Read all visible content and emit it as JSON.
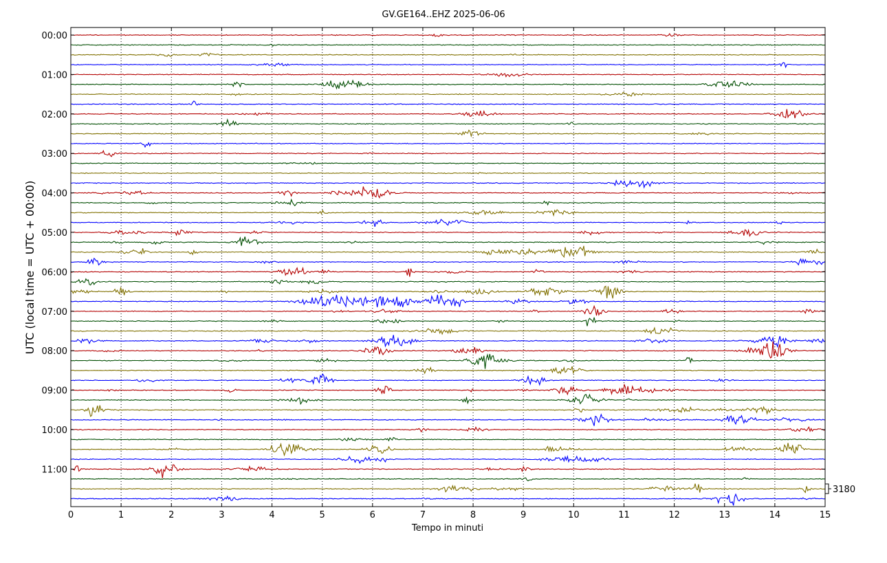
{
  "chart_data": {
    "type": "line",
    "title": "GV.GE164..EHZ 2025-06-06",
    "xlabel": "Tempo in minuti",
    "ylabel": "UTC (local time = UTC + 00:00)",
    "xlim": [
      0,
      15
    ],
    "x_ticks": [
      "0",
      "1",
      "2",
      "3",
      "4",
      "5",
      "6",
      "7",
      "8",
      "9",
      "10",
      "11",
      "12",
      "13",
      "14",
      "15"
    ],
    "y_ticks": [
      "00:00",
      "01:00",
      "02:00",
      "03:00",
      "04:00",
      "05:00",
      "06:00",
      "07:00",
      "08:00",
      "09:00",
      "10:00",
      "11:00"
    ],
    "traces_per_hour": 4,
    "trace_minutes": 15,
    "trace_count": 48,
    "color_cycle": [
      "#b30000",
      "#004d00",
      "#807000",
      "#0000ff"
    ],
    "scale_label": "3180",
    "grid": "vertical dotted"
  }
}
